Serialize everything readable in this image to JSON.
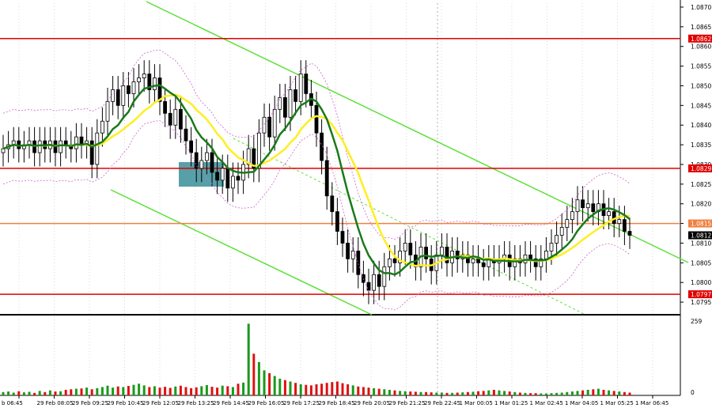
{
  "chart_data": {
    "type": "candlestick",
    "y_range": [
      1.0792,
      1.0871
    ],
    "price_ticks": [
      "1.0870",
      "1.0865",
      "1.0860",
      "1.0855",
      "1.0850",
      "1.0845",
      "1.0840",
      "1.0835",
      "1.0830",
      "1.0825",
      "1.0820",
      "1.0815",
      "1.0810",
      "1.0805",
      "1.0800",
      "1.0795"
    ],
    "time_labels": [
      "b 06:45",
      "29 Feb 08:05",
      "29 Feb 09:25",
      "29 Feb 10:45",
      "29 Feb 12:05",
      "29 Feb 13:25",
      "29 Feb 14:45",
      "29 Feb 16:05",
      "29 Feb 17:25",
      "29 Feb 18:45",
      "29 Feb 20:05",
      "29 Feb 21:25",
      "29 Feb 22:45",
      "1 Mar 00:05",
      "1 Mar 01:25",
      "1 Mar 02:45",
      "1 Mar 04:05",
      "1 Mar 05:25",
      "1 Mar 06:45"
    ],
    "volume_range": [
      0,
      259
    ],
    "volume_ticks": [
      "259",
      "0"
    ],
    "levels": [
      {
        "label": "1.0862",
        "value": 1.0862,
        "color": "#e00000"
      },
      {
        "label": "1.0829",
        "value": 1.0829,
        "color": "#e00000"
      },
      {
        "label": "1.0815",
        "value": 1.0815,
        "color": "#f08040"
      },
      {
        "label": "1.0797",
        "value": 1.0797,
        "color": "#e00000"
      }
    ],
    "current_price": {
      "label": "1.0812",
      "value": 1.0812
    },
    "channel_lines": {
      "color": "#5ee03a"
    },
    "moving_averages": [
      {
        "color": "#1a7a1a"
      },
      {
        "color": "#ffee22"
      }
    ],
    "closes": [
      1.0834,
      1.0835,
      1.0836,
      1.0834,
      1.0835,
      1.0836,
      1.0833,
      1.0836,
      1.0834,
      1.0836,
      1.0833,
      1.0836,
      1.0835,
      1.0834,
      1.0837,
      1.0835,
      1.0836,
      1.083,
      1.0838,
      1.0841,
      1.0846,
      1.0849,
      1.0845,
      1.085,
      1.0848,
      1.0851,
      1.0852,
      1.0853,
      1.0849,
      1.0852,
      1.0846,
      1.0843,
      1.084,
      1.0844,
      1.0839,
      1.0836,
      1.0833,
      1.0829,
      1.0831,
      1.0833,
      1.0828,
      1.0826,
      1.0829,
      1.0824,
      1.0827,
      1.0826,
      1.083,
      1.0834,
      1.0829,
      1.0838,
      1.0842,
      1.0837,
      1.0844,
      1.0847,
      1.0842,
      1.0849,
      1.0846,
      1.0853,
      1.0848,
      1.0845,
      1.0838,
      1.0831,
      1.0822,
      1.0818,
      1.0813,
      1.081,
      1.0806,
      1.0808,
      1.0802,
      1.08,
      1.0798,
      1.0802,
      1.0799,
      1.0804,
      1.0806,
      1.0805,
      1.0808,
      1.081,
      1.0807,
      1.0804,
      1.0809,
      1.0806,
      1.0803,
      1.0807,
      1.0809,
      1.0805,
      1.0808,
      1.0806,
      1.0807,
      1.0805,
      1.0806,
      1.0805,
      1.0804,
      1.0806,
      1.0805,
      1.0806,
      1.0807,
      1.0804,
      1.0806,
      1.0805,
      1.0807,
      1.0806,
      1.0804,
      1.0806,
      1.0808,
      1.081,
      1.0812,
      1.0814,
      1.0816,
      1.0818,
      1.0821,
      1.0819,
      1.082,
      1.0818,
      1.082,
      1.0817,
      1.0818,
      1.0815,
      1.0816,
      1.0813,
      1.0812
    ],
    "volumes": [
      12,
      14,
      10,
      15,
      11,
      13,
      9,
      16,
      12,
      18,
      14,
      15,
      20,
      22,
      24,
      25,
      28,
      22,
      26,
      30,
      35,
      28,
      32,
      30,
      34,
      38,
      42,
      36,
      30,
      33,
      28,
      31,
      27,
      32,
      35,
      30,
      26,
      29,
      33,
      37,
      31,
      28,
      35,
      33,
      30,
      42,
      46,
      258,
      150,
      120,
      90,
      80,
      70,
      60,
      55,
      50,
      45,
      40,
      38,
      36,
      40,
      42,
      45,
      48,
      50,
      44,
      40,
      36,
      32,
      30,
      28,
      26,
      24,
      22,
      20,
      18,
      16,
      15,
      14,
      13,
      12,
      12,
      11,
      10,
      10,
      9,
      9,
      10,
      11,
      12,
      13,
      15,
      16,
      18,
      20,
      18,
      16,
      14,
      12,
      10,
      9,
      8,
      8,
      7,
      7,
      8,
      9,
      10,
      12,
      14,
      16,
      18,
      20,
      22,
      24,
      20,
      18,
      16,
      14,
      12,
      10
    ]
  }
}
